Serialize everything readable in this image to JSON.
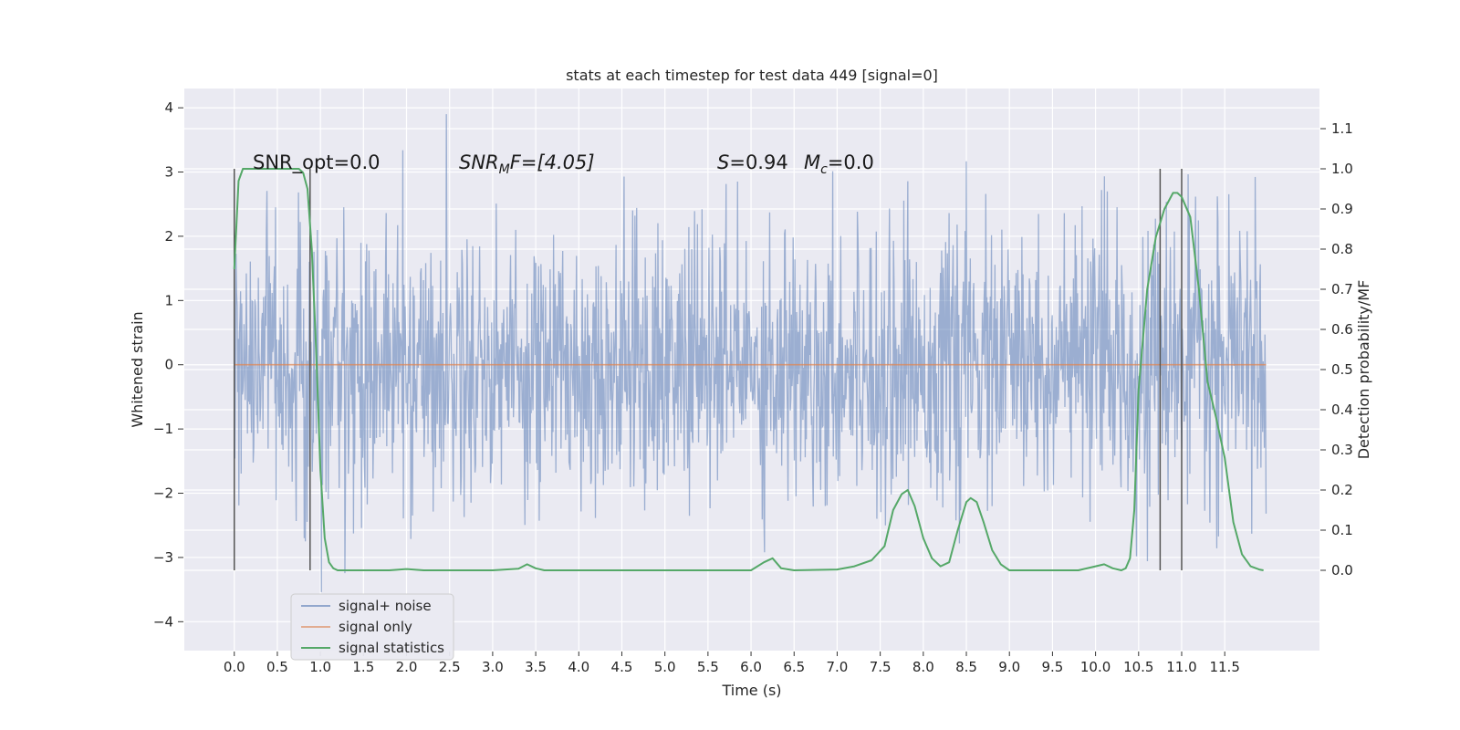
{
  "chart_data": {
    "type": "line",
    "title": "stats at each timestep for test data 449 [signal=0]",
    "xlabel": "Time (s)",
    "ylabel_left": "Whitened strain",
    "ylabel_right": "Detection probability/MF",
    "xlim": [
      -0.58,
      12.6
    ],
    "ylim_left": [
      -4.45,
      4.3
    ],
    "ylim_right": [
      -0.2,
      1.2
    ],
    "x_ticks": [
      "0.0",
      "0.5",
      "1.0",
      "1.5",
      "2.0",
      "2.5",
      "3.0",
      "3.5",
      "4.0",
      "4.5",
      "5.0",
      "5.5",
      "6.0",
      "6.5",
      "7.0",
      "7.5",
      "8.0",
      "8.5",
      "9.0",
      "9.5",
      "10.0",
      "10.5",
      "11.0",
      "11.5"
    ],
    "y_ticks_left": [
      "4",
      "3",
      "2",
      "1",
      "0",
      "−1",
      "−2",
      "−3",
      "−4"
    ],
    "y_ticks_right": [
      "1.1",
      "1.0",
      "0.9",
      "0.8",
      "0.7",
      "0.6",
      "0.5",
      "0.4",
      "0.3",
      "0.2",
      "0.1",
      "0.0"
    ],
    "grid": true,
    "legend_position": "lower-left",
    "annotations": {
      "snr_opt": "SNR_opt=0.0",
      "snr_mf_prefix": "SNR",
      "snr_mf_sub": "M",
      "snr_mf_suffix": "F=[4.05]",
      "s_label": "S",
      "s_value": "=0.94",
      "mc_label": "M",
      "mc_sub": "c",
      "mc_value": "=0.0"
    },
    "series": [
      {
        "name": "signal+ noise",
        "color": "#4c72b0",
        "axis": "left",
        "x_range": [
          0.0,
          11.98
        ],
        "envelope_note": "dense noise, amplitude mostly within [-3.5, 3.9]"
      },
      {
        "name": "signal only",
        "color": "#dd8452",
        "axis": "left",
        "x": [
          0.0,
          11.98
        ],
        "y": [
          0.0,
          0.0
        ]
      },
      {
        "name": "signal statistics",
        "color": "#55a868",
        "axis": "right",
        "x": [
          0.0,
          0.05,
          0.1,
          0.15,
          0.2,
          0.3,
          0.4,
          0.5,
          0.6,
          0.7,
          0.75,
          0.8,
          0.85,
          0.9,
          0.95,
          1.0,
          1.05,
          1.1,
          1.15,
          1.2,
          1.3,
          1.5,
          1.8,
          2.0,
          2.2,
          2.5,
          3.0,
          3.3,
          3.4,
          3.5,
          3.6,
          4.0,
          4.5,
          5.0,
          5.5,
          6.0,
          6.15,
          6.25,
          6.35,
          6.5,
          7.0,
          7.2,
          7.4,
          7.55,
          7.65,
          7.75,
          7.82,
          7.9,
          8.0,
          8.1,
          8.2,
          8.3,
          8.4,
          8.5,
          8.55,
          8.62,
          8.7,
          8.8,
          8.9,
          9.0,
          9.2,
          9.5,
          9.8,
          10.0,
          10.1,
          10.2,
          10.3,
          10.35,
          10.4,
          10.45,
          10.5,
          10.6,
          10.7,
          10.8,
          10.9,
          10.95,
          11.0,
          11.1,
          11.2,
          11.3,
          11.4,
          11.5,
          11.6,
          11.7,
          11.8,
          11.9,
          11.95
        ],
        "y": [
          0.75,
          0.97,
          1.0,
          1.0,
          1.0,
          1.0,
          1.0,
          1.0,
          1.0,
          1.0,
          1.0,
          0.99,
          0.95,
          0.8,
          0.55,
          0.25,
          0.08,
          0.02,
          0.005,
          0.0,
          0.0,
          0.0,
          0.0,
          0.003,
          0.0,
          0.0,
          0.0,
          0.004,
          0.015,
          0.005,
          0.0,
          0.0,
          0.0,
          0.0,
          0.0,
          0.0,
          0.02,
          0.03,
          0.005,
          0.0,
          0.002,
          0.01,
          0.025,
          0.06,
          0.15,
          0.19,
          0.2,
          0.16,
          0.08,
          0.03,
          0.01,
          0.02,
          0.1,
          0.17,
          0.18,
          0.17,
          0.12,
          0.05,
          0.015,
          0.0,
          0.0,
          0.0,
          0.0,
          0.01,
          0.015,
          0.005,
          0.0,
          0.005,
          0.03,
          0.15,
          0.45,
          0.7,
          0.83,
          0.9,
          0.94,
          0.94,
          0.93,
          0.88,
          0.7,
          0.47,
          0.38,
          0.28,
          0.12,
          0.04,
          0.01,
          0.002,
          0.0
        ]
      }
    ],
    "vertical_markers": [
      {
        "x": 0.0,
        "y_range_right": [
          0.0,
          1.0
        ]
      },
      {
        "x": 0.88,
        "y_range_right": [
          0.0,
          1.0
        ]
      },
      {
        "x": 10.75,
        "y_range_right": [
          0.0,
          1.0
        ]
      },
      {
        "x": 11.0,
        "y_range_right": [
          0.0,
          1.0
        ]
      }
    ]
  }
}
